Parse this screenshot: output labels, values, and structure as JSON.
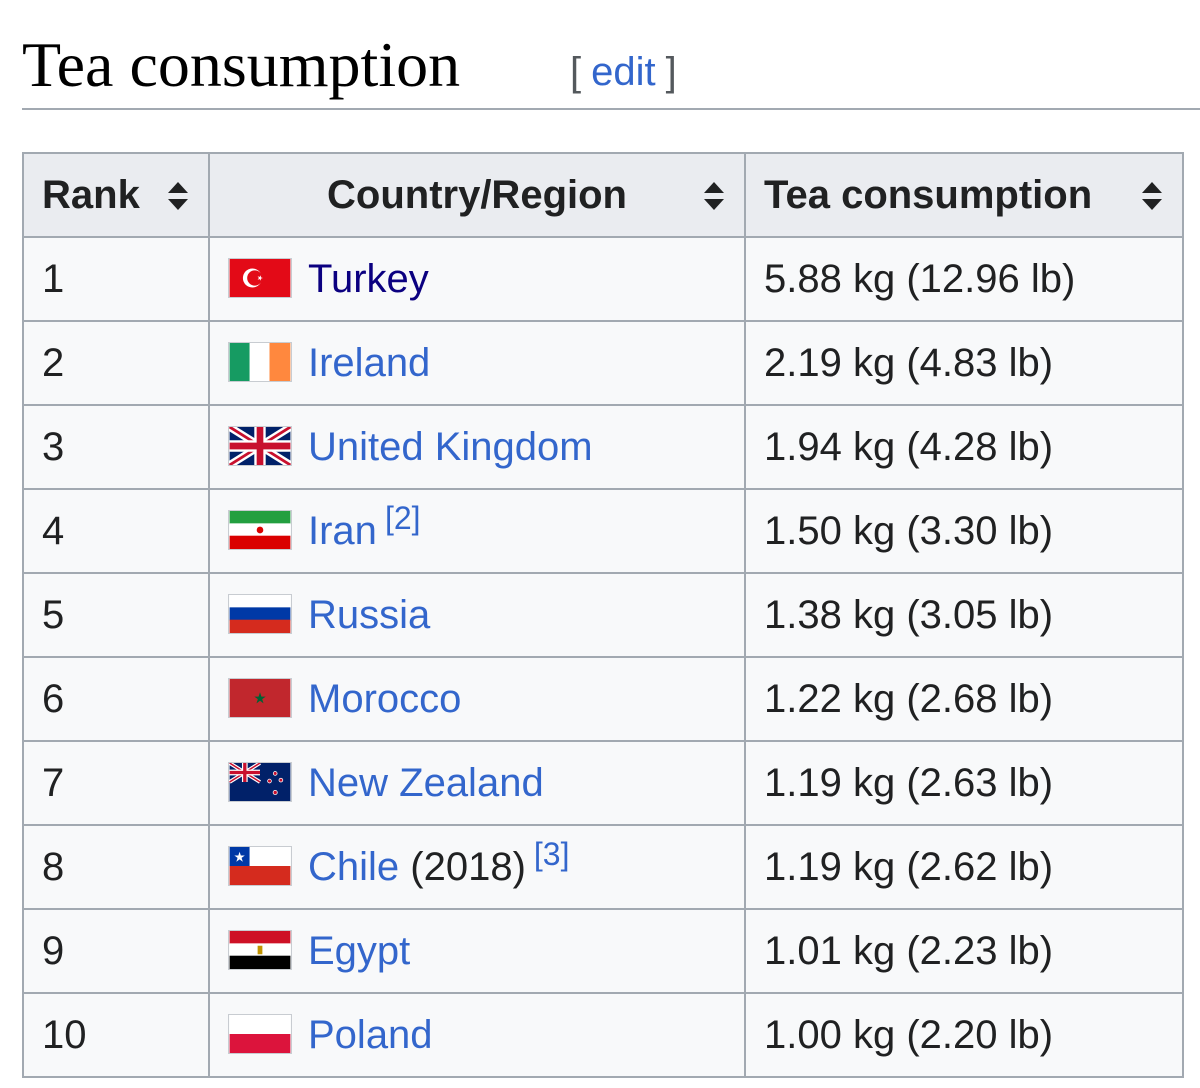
{
  "section": {
    "title": "Tea consumption",
    "edit_open": "[",
    "edit_label": "edit",
    "edit_close": "]"
  },
  "table": {
    "headers": {
      "rank": "Rank",
      "country": "Country/Region",
      "tea": "Tea consumption"
    },
    "rows": [
      {
        "rank": "1",
        "country": "Turkey",
        "note": "",
        "ref": "",
        "consumption": "5.88 kg (12.96 lb)",
        "flag_icon": "turkey-flag-icon"
      },
      {
        "rank": "2",
        "country": "Ireland",
        "note": "",
        "ref": "",
        "consumption": "2.19 kg (4.83 lb)",
        "flag_icon": "ireland-flag-icon"
      },
      {
        "rank": "3",
        "country": "United Kingdom",
        "note": "",
        "ref": "",
        "consumption": "1.94 kg (4.28 lb)",
        "flag_icon": "uk-flag-icon"
      },
      {
        "rank": "4",
        "country": "Iran",
        "note": "",
        "ref": "[2]",
        "consumption": "1.50 kg (3.30 lb)",
        "flag_icon": "iran-flag-icon"
      },
      {
        "rank": "5",
        "country": "Russia",
        "note": "",
        "ref": "",
        "consumption": "1.38 kg (3.05 lb)",
        "flag_icon": "russia-flag-icon"
      },
      {
        "rank": "6",
        "country": "Morocco",
        "note": "",
        "ref": "",
        "consumption": "1.22 kg (2.68 lb)",
        "flag_icon": "morocco-flag-icon"
      },
      {
        "rank": "7",
        "country": "New Zealand",
        "note": "",
        "ref": "",
        "consumption": "1.19 kg (2.63 lb)",
        "flag_icon": "new-zealand-flag-icon"
      },
      {
        "rank": "8",
        "country": "Chile",
        "note": "(2018)",
        "ref": "[3]",
        "consumption": "1.19 kg (2.62 lb)",
        "flag_icon": "chile-flag-icon"
      },
      {
        "rank": "9",
        "country": "Egypt",
        "note": "",
        "ref": "",
        "consumption": "1.01 kg (2.23 lb)",
        "flag_icon": "egypt-flag-icon"
      },
      {
        "rank": "10",
        "country": "Poland",
        "note": "",
        "ref": "",
        "consumption": "1.00 kg (2.20 lb)",
        "flag_icon": "poland-flag-icon"
      }
    ]
  },
  "colors": {
    "link": "#3366cc",
    "visited_link": "#0b0080",
    "header_bg": "#eaecf0",
    "cell_bg": "#f8f9fa",
    "border": "#a2a9b1"
  }
}
